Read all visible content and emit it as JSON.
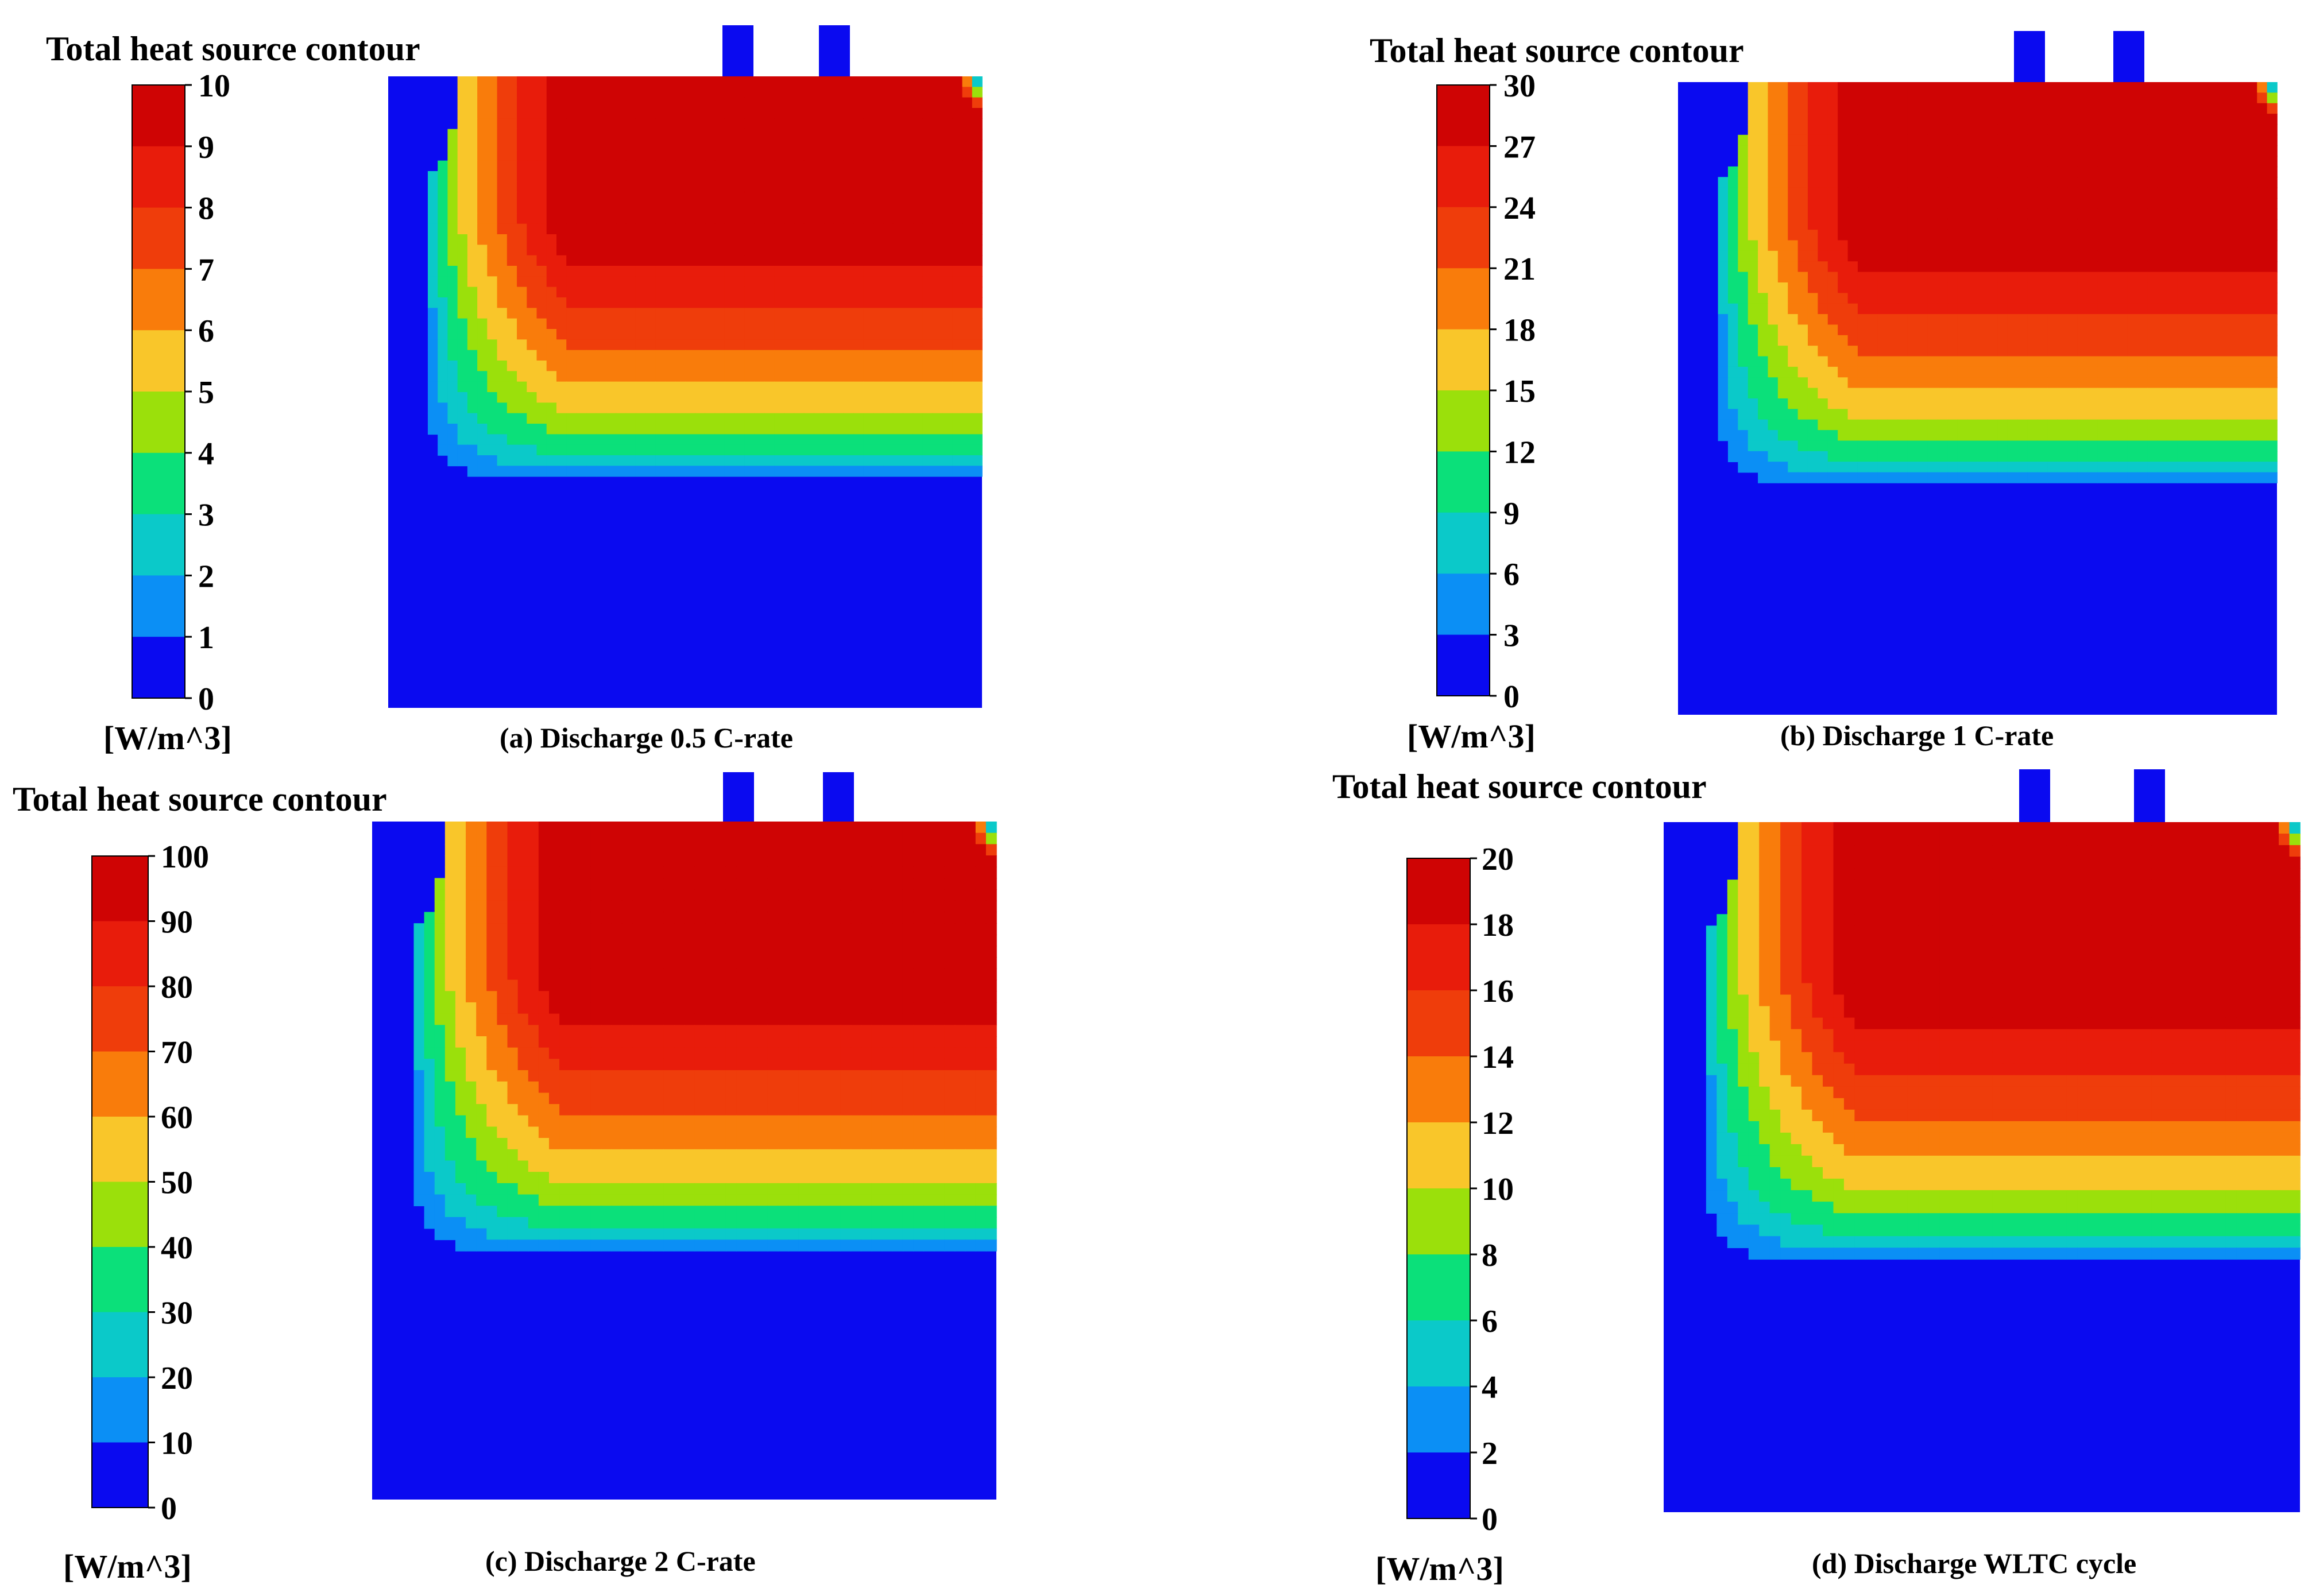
{
  "colors": {
    "levels": [
      "#0a0af0",
      "#0b8ff5",
      "#0bc9c9",
      "#0be07a",
      "#9be00b",
      "#f9c62a",
      "#f97c0b",
      "#ef3d0b",
      "#e81c0b",
      "#cf0404"
    ],
    "tab": "#0a0af0"
  },
  "chart_data": [
    {
      "id": "a",
      "type": "heatmap",
      "title": "Total heat source contour",
      "unit": "[W/m^3]",
      "caption": "(a) Discharge 0.5 C-rate",
      "scale_min": 0,
      "scale_max": 10,
      "ticks": [
        "10",
        "9",
        "8",
        "7",
        "6",
        "5",
        "4",
        "3",
        "2",
        "1",
        "0"
      ],
      "field": {
        "hot_corner": "top-right",
        "cold_zone": "bottom",
        "cold_corner": "top-left",
        "band_count": 10
      }
    },
    {
      "id": "b",
      "type": "heatmap",
      "title": "Total heat source contour",
      "unit": "[W/m^3]",
      "caption": "(b) Discharge 1 C-rate",
      "scale_min": 0,
      "scale_max": 30,
      "ticks": [
        "30",
        "27",
        "24",
        "21",
        "18",
        "15",
        "12",
        "9",
        "6",
        "3",
        "0"
      ],
      "field": {
        "hot_corner": "top-right",
        "cold_zone": "bottom",
        "cold_corner": "top-left",
        "band_count": 10
      }
    },
    {
      "id": "c",
      "type": "heatmap",
      "title": "Total heat source contour",
      "unit": "[W/m^3]",
      "caption": "(c) Discharge 2 C-rate",
      "scale_min": 0,
      "scale_max": 100,
      "ticks": [
        "100",
        "90",
        "80",
        "70",
        "60",
        "50",
        "40",
        "30",
        "20",
        "10",
        "0"
      ],
      "field": {
        "hot_corner": "top-right",
        "cold_zone": "bottom",
        "cold_corner": "top-left",
        "band_count": 10
      }
    },
    {
      "id": "d",
      "type": "heatmap",
      "title": "Total heat source contour",
      "unit": "[W/m^3]",
      "caption": "(d) Discharge WLTC cycle",
      "scale_min": 0,
      "scale_max": 20,
      "ticks": [
        "20",
        "18",
        "16",
        "14",
        "12",
        "10",
        "8",
        "6",
        "4",
        "2",
        "0"
      ],
      "field": {
        "hot_corner": "top-right",
        "cold_zone": "bottom",
        "cold_corner": "top-left",
        "band_count": 10
      }
    }
  ]
}
